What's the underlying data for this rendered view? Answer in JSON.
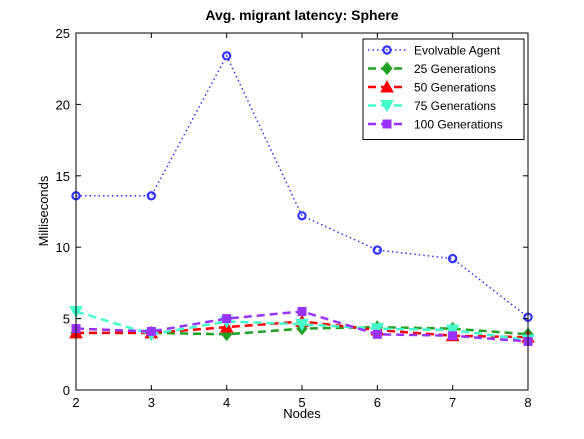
{
  "chart_data": {
    "type": "line",
    "title": "Avg. migrant latency: Sphere",
    "xlabel": "Nodes",
    "ylabel": "Milliseconds",
    "x": [
      2,
      3,
      4,
      5,
      6,
      7,
      8
    ],
    "xlim": [
      2,
      8
    ],
    "ylim": [
      0,
      25
    ],
    "xticks": [
      "2",
      "3",
      "4",
      "5",
      "6",
      "7",
      "8"
    ],
    "yticks": [
      "0",
      "5",
      "10",
      "15",
      "20",
      "25"
    ],
    "grid": false,
    "legend_position": "top-right",
    "series": [
      {
        "name": "Evolvable Agent",
        "values": [
          13.6,
          13.6,
          23.4,
          12.2,
          9.8,
          9.2,
          5.1
        ],
        "color": "#3333ff",
        "marker": "circle",
        "dash": "dotted"
      },
      {
        "name": "25 Generations",
        "values": [
          4.0,
          4.0,
          3.9,
          4.3,
          4.4,
          4.3,
          3.9
        ],
        "color": "#22a022",
        "marker": "diamond",
        "dash": "dashed"
      },
      {
        "name": "50 Generations",
        "values": [
          4.0,
          4.0,
          4.4,
          4.8,
          4.2,
          3.8,
          3.7
        ],
        "color": "#ff0000",
        "marker": "triangle-up",
        "dash": "dashed"
      },
      {
        "name": "75 Generations",
        "values": [
          5.5,
          3.9,
          4.8,
          4.6,
          4.3,
          4.2,
          3.5
        ],
        "color": "#44ffcc",
        "marker": "triangle-down",
        "dash": "dashed"
      },
      {
        "name": "100 Generations",
        "values": [
          4.3,
          4.1,
          5.0,
          5.5,
          3.9,
          3.8,
          3.4
        ],
        "color": "#9933ff",
        "marker": "square",
        "dash": "dashed"
      }
    ]
  }
}
